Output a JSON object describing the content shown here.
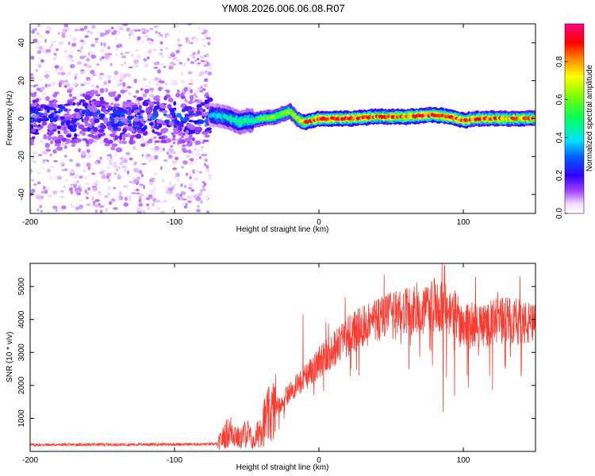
{
  "title": "YM08.2026.006.06.08.R07",
  "chart_data": [
    {
      "type": "heatmap",
      "xlabel": "Height of straight line (km)",
      "ylabel": "Frequency (Hz)",
      "xlim": [
        -200,
        150
      ],
      "ylim": [
        -50,
        50
      ],
      "xticks": [
        -200,
        -100,
        0,
        100
      ],
      "yticks": [
        -40,
        -20,
        0,
        20,
        40
      ],
      "colorbar": {
        "label": "Normalized spectral amplitude",
        "range": [
          0.0,
          1.0
        ],
        "ticks": [
          0.0,
          0.2,
          0.4,
          0.6,
          0.8
        ],
        "tick_labels": [
          "0.0",
          "0.2",
          "0.4",
          "0.6",
          "0.8"
        ]
      },
      "ridge": {
        "description": "narrow high-amplitude band tracking frequency near 0 Hz",
        "x": [
          -75,
          -65,
          -55,
          -50,
          -45,
          -40,
          -30,
          -20,
          -15,
          -10,
          0,
          20,
          40,
          60,
          80,
          90,
          100,
          110,
          130,
          150
        ],
        "y": [
          2,
          1,
          -2,
          -1,
          -1,
          0,
          1,
          4,
          0,
          -2,
          0,
          0,
          1,
          1,
          2,
          1,
          -1,
          0,
          0,
          0
        ],
        "amplitude": [
          0.35,
          0.4,
          0.45,
          0.5,
          0.5,
          0.55,
          0.6,
          0.65,
          0.7,
          0.8,
          0.9,
          0.9,
          0.85,
          0.85,
          0.9,
          0.9,
          0.85,
          0.85,
          0.8,
          0.8
        ]
      },
      "noise_region": {
        "x_range": [
          -200,
          -75
        ],
        "y_range": [
          -50,
          50
        ],
        "core_y_range": [
          -10,
          10
        ],
        "amplitude_range": [
          0.05,
          0.35
        ]
      }
    },
    {
      "type": "line",
      "xlabel": "Height of straight line (km)",
      "ylabel": "SNR (10 * v/v)",
      "xlim": [
        -200,
        150
      ],
      "ylim": [
        0,
        5700
      ],
      "xticks": [
        -200,
        -100,
        0,
        100
      ],
      "yticks": [
        1000,
        2000,
        3000,
        4000,
        5000
      ],
      "series": [
        {
          "name": "SNR",
          "color": "#ff3b30",
          "envelope_x": [
            -200,
            -70,
            -65,
            -60,
            -55,
            -50,
            -45,
            -40,
            -30,
            -20,
            -10,
            0,
            10,
            20,
            30,
            40,
            50,
            60,
            70,
            80,
            90,
            100,
            110,
            120,
            130,
            140,
            150
          ],
          "envelope_y": [
            200,
            220,
            500,
            650,
            350,
            600,
            250,
            800,
            1300,
            1800,
            2200,
            2700,
            3100,
            3500,
            3800,
            4000,
            4100,
            4200,
            4200,
            4400,
            4300,
            3900,
            3800,
            3900,
            4000,
            3900,
            3800
          ],
          "spikes": [
            {
              "x": -11,
              "y": 4150
            },
            {
              "x": 66,
              "y": 5000
            },
            {
              "x": 78,
              "y": 5150
            },
            {
              "x": 87,
              "y": 5650
            },
            {
              "x": 86,
              "y": 1200
            }
          ]
        }
      ]
    }
  ]
}
